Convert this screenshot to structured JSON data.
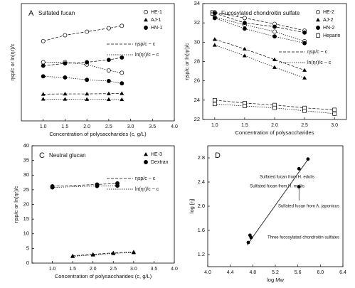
{
  "chart_data": [
    {
      "type": "line",
      "panel_label": "A",
      "title": "Sulfated fucan",
      "x_label": "Concentration of polysaccharides (c, g/L)",
      "y_label": "ηsp/c or ln(ηr)/c",
      "xlim": [
        0.5,
        4.0
      ],
      "xticks": [
        {
          "value": 1.0,
          "label": "1.0"
        },
        {
          "value": 1.5,
          "label": "1.5"
        },
        {
          "value": 2.0,
          "label": "2.0"
        },
        {
          "value": 2.5,
          "label": "2.5"
        },
        {
          "value": 3.0,
          "label": "3.0"
        },
        {
          "value": 3.5,
          "label": "3.5"
        },
        {
          "value": 4.0,
          "label": "4.0"
        }
      ],
      "ylim": [
        0,
        100
      ],
      "legend": "upper right",
      "line_labels": [
        "ηsp/c ~ c",
        "ln(ηr)/c ~ c"
      ],
      "series": [
        {
          "name": "HE-1",
          "marker": "open-circle",
          "color": "#000000",
          "x": [
            1.0,
            1.5,
            2.0,
            2.5,
            2.8
          ],
          "values": [
            68,
            73,
            76,
            79,
            81
          ],
          "ln_values": [
            50,
            50,
            48,
            43,
            41
          ]
        },
        {
          "name": "AJ-1",
          "marker": "triangle",
          "color": "#000000",
          "x": [
            1.0,
            1.5,
            2.0,
            2.5,
            2.8
          ],
          "values": [
            22.8,
            23,
            23,
            23.2,
            23.4
          ],
          "ln_values": [
            18.6,
            18.5,
            18.4,
            18.3,
            18.2
          ]
        },
        {
          "name": "HN-1",
          "marker": "filled-circle",
          "color": "#000000",
          "x": [
            1.0,
            1.5,
            2.0,
            2.5,
            2.8
          ],
          "values": [
            47,
            49,
            50,
            52,
            54
          ],
          "ln_values": [
            38,
            37,
            35,
            34,
            32
          ]
        }
      ]
    },
    {
      "type": "line",
      "panel_label": "B",
      "title": "Fucosylated chondroitin sulfate",
      "x_label": "Concentration of polysaccharides",
      "y_label": "ηsp/c or ln(ηr)/c",
      "xlim": [
        0.8,
        3.2
      ],
      "xticks": [
        {
          "value": 1.0,
          "label": "1.0"
        },
        {
          "value": 1.5,
          "label": "1.5"
        },
        {
          "value": 2.0,
          "label": "2.0"
        },
        {
          "value": 2.5,
          "label": "2.5"
        },
        {
          "value": 3.0,
          "label": "3.0"
        }
      ],
      "ylim": [
        22,
        34
      ],
      "yticks": [
        22,
        24,
        26,
        28,
        30,
        32,
        34
      ],
      "legend": "upper right",
      "line_labels": [
        "ηsp/c ~ c",
        "ln(ηr)/c ~ c"
      ],
      "series": [
        {
          "name": "HE-2",
          "marker": "open-circle",
          "color": "#000000",
          "x": [
            1.0,
            1.5,
            2.0,
            2.5
          ],
          "values": [
            33.1,
            32.5,
            31.9,
            31.2
          ],
          "ln_values": [
            32.6,
            31.8,
            31.1,
            30.1
          ]
        },
        {
          "name": "AJ-2",
          "marker": "triangle",
          "color": "#000000",
          "x": [
            1.0,
            1.5,
            2.0,
            2.5
          ],
          "values": [
            30.3,
            29.3,
            28.2,
            27.1
          ],
          "ln_values": [
            29.7,
            28.6,
            27.4,
            26.3
          ]
        },
        {
          "name": "HN-2",
          "marker": "filled-circle",
          "color": "#000000",
          "x": [
            1.0,
            1.5,
            2.0,
            2.5
          ],
          "values": [
            33.0,
            32.0,
            31.6,
            31.0
          ],
          "ln_values": [
            32.5,
            31.4,
            30.6,
            29.9
          ]
        },
        {
          "name": "Heparin",
          "marker": "open-square",
          "color": "#000000",
          "x": [
            1.0,
            1.5,
            2.0,
            2.5,
            3.0
          ],
          "values": [
            24.0,
            23.7,
            23.5,
            23.2,
            23.0
          ],
          "ln_values": [
            23.6,
            23.4,
            23.2,
            22.9,
            22.6
          ]
        }
      ]
    },
    {
      "type": "line",
      "panel_label": "C",
      "title": "Neutral glucan",
      "x_label": "Concentration of polysaccharides (c, g/L)",
      "y_label": "ηsp/c or ln(ηr)/c",
      "xlim": [
        0.5,
        4.0
      ],
      "xticks": [
        {
          "value": 1.0,
          "label": "1.0"
        },
        {
          "value": 1.5,
          "label": "1.5"
        },
        {
          "value": 2.0,
          "label": "2.0"
        },
        {
          "value": 2.5,
          "label": "2.5"
        },
        {
          "value": 3.0,
          "label": "3.0"
        },
        {
          "value": 3.5,
          "label": "3.5"
        },
        {
          "value": 4.0,
          "label": "4.0"
        }
      ],
      "ylim": [
        0,
        40
      ],
      "yticks": [
        0,
        5,
        10,
        15,
        20,
        25,
        30,
        35,
        40
      ],
      "legend": "upper right",
      "line_labels": [
        "ηsp/c ~ c",
        "ln(ηr)/c ~ c"
      ],
      "series": [
        {
          "name": "HE-3",
          "marker": "triangle",
          "color": "#000000",
          "x": [
            1.5,
            2.0,
            2.5,
            3.0
          ],
          "values": [
            2.5,
            3.0,
            3.5,
            3.8
          ],
          "ln_values": [
            2.3,
            2.8,
            3.3,
            3.6
          ]
        },
        {
          "name": "Dextran",
          "marker": "filled-circle",
          "color": "#000000",
          "x": [
            1.0,
            2.1,
            2.6
          ],
          "values": [
            26.2,
            26.8,
            27.2
          ],
          "ln_values": [
            25.8,
            26.3,
            26.4
          ]
        }
      ]
    },
    {
      "type": "scatter",
      "panel_label": "D",
      "x_label": "log Mw",
      "y_label": "log [η]",
      "xlim": [
        4.0,
        6.4
      ],
      "xticks": [
        {
          "value": 4.0,
          "label": "4.0"
        },
        4.4,
        4.8,
        5.2,
        5.6,
        {
          "value": 6.0,
          "label": "6.0"
        },
        6.4
      ],
      "ylim": [
        1.0,
        3.0
      ],
      "yticks": [
        1.2,
        1.6,
        {
          "value": 2.0,
          "label": "2.0"
        },
        2.4,
        2.8
      ],
      "x": [
        4.72,
        4.75,
        4.77,
        5.62,
        5.78,
        5.62
      ],
      "values": [
        1.4,
        1.52,
        1.48,
        2.62,
        2.78,
        2.32
      ],
      "color": "#000000",
      "fit_line": {
        "x": [
          4.7,
          5.8
        ],
        "y": [
          1.36,
          2.8
        ]
      },
      "annotations": [
        "Sulfated fucan from H. edulis",
        "Sulfated fucan from H. mollis",
        "Sulfated fucan from A. japonicus",
        "Three fucosylated chondroitin sulfates"
      ]
    }
  ]
}
